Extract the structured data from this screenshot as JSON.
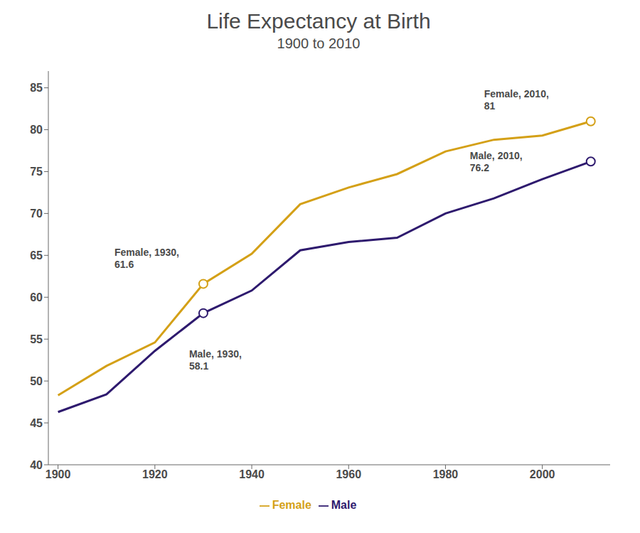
{
  "chart_data": {
    "type": "line",
    "title": "Life Expectancy at Birth",
    "subtitle": "1900 to 2010",
    "x": [
      1900,
      1910,
      1920,
      1930,
      1940,
      1950,
      1960,
      1970,
      1980,
      1990,
      2000,
      2010
    ],
    "series": [
      {
        "name": "Male",
        "color": "#2e1a6e",
        "values": [
          46.3,
          48.4,
          53.6,
          58.1,
          60.8,
          65.6,
          66.6,
          67.1,
          70.0,
          71.8,
          74.1,
          76.2
        ]
      },
      {
        "name": "Female",
        "color": "#d4a017",
        "values": [
          48.3,
          51.8,
          54.6,
          61.6,
          65.2,
          71.1,
          73.1,
          74.7,
          77.4,
          78.8,
          79.3,
          81.0
        ]
      }
    ],
    "xlim": [
      1898,
      2014
    ],
    "xticks": [
      1900,
      1920,
      1940,
      1960,
      1980,
      2000
    ],
    "ylim": [
      40,
      87
    ],
    "yticks": [
      40,
      45,
      50,
      55,
      60,
      65,
      70,
      75,
      80,
      85
    ],
    "grid": false,
    "legend": "bottom",
    "annotations": [
      {
        "text": "Female, 1930,\n61.6",
        "x": 1930,
        "y": 61.6
      },
      {
        "text": "Male, 1930,\n58.1",
        "x": 1930,
        "y": 58.1
      },
      {
        "text": "Female, 2010,\n81",
        "x": 2010,
        "y": 81.0
      },
      {
        "text": "Male, 2010,\n76.2",
        "x": 2010,
        "y": 76.2
      }
    ]
  }
}
